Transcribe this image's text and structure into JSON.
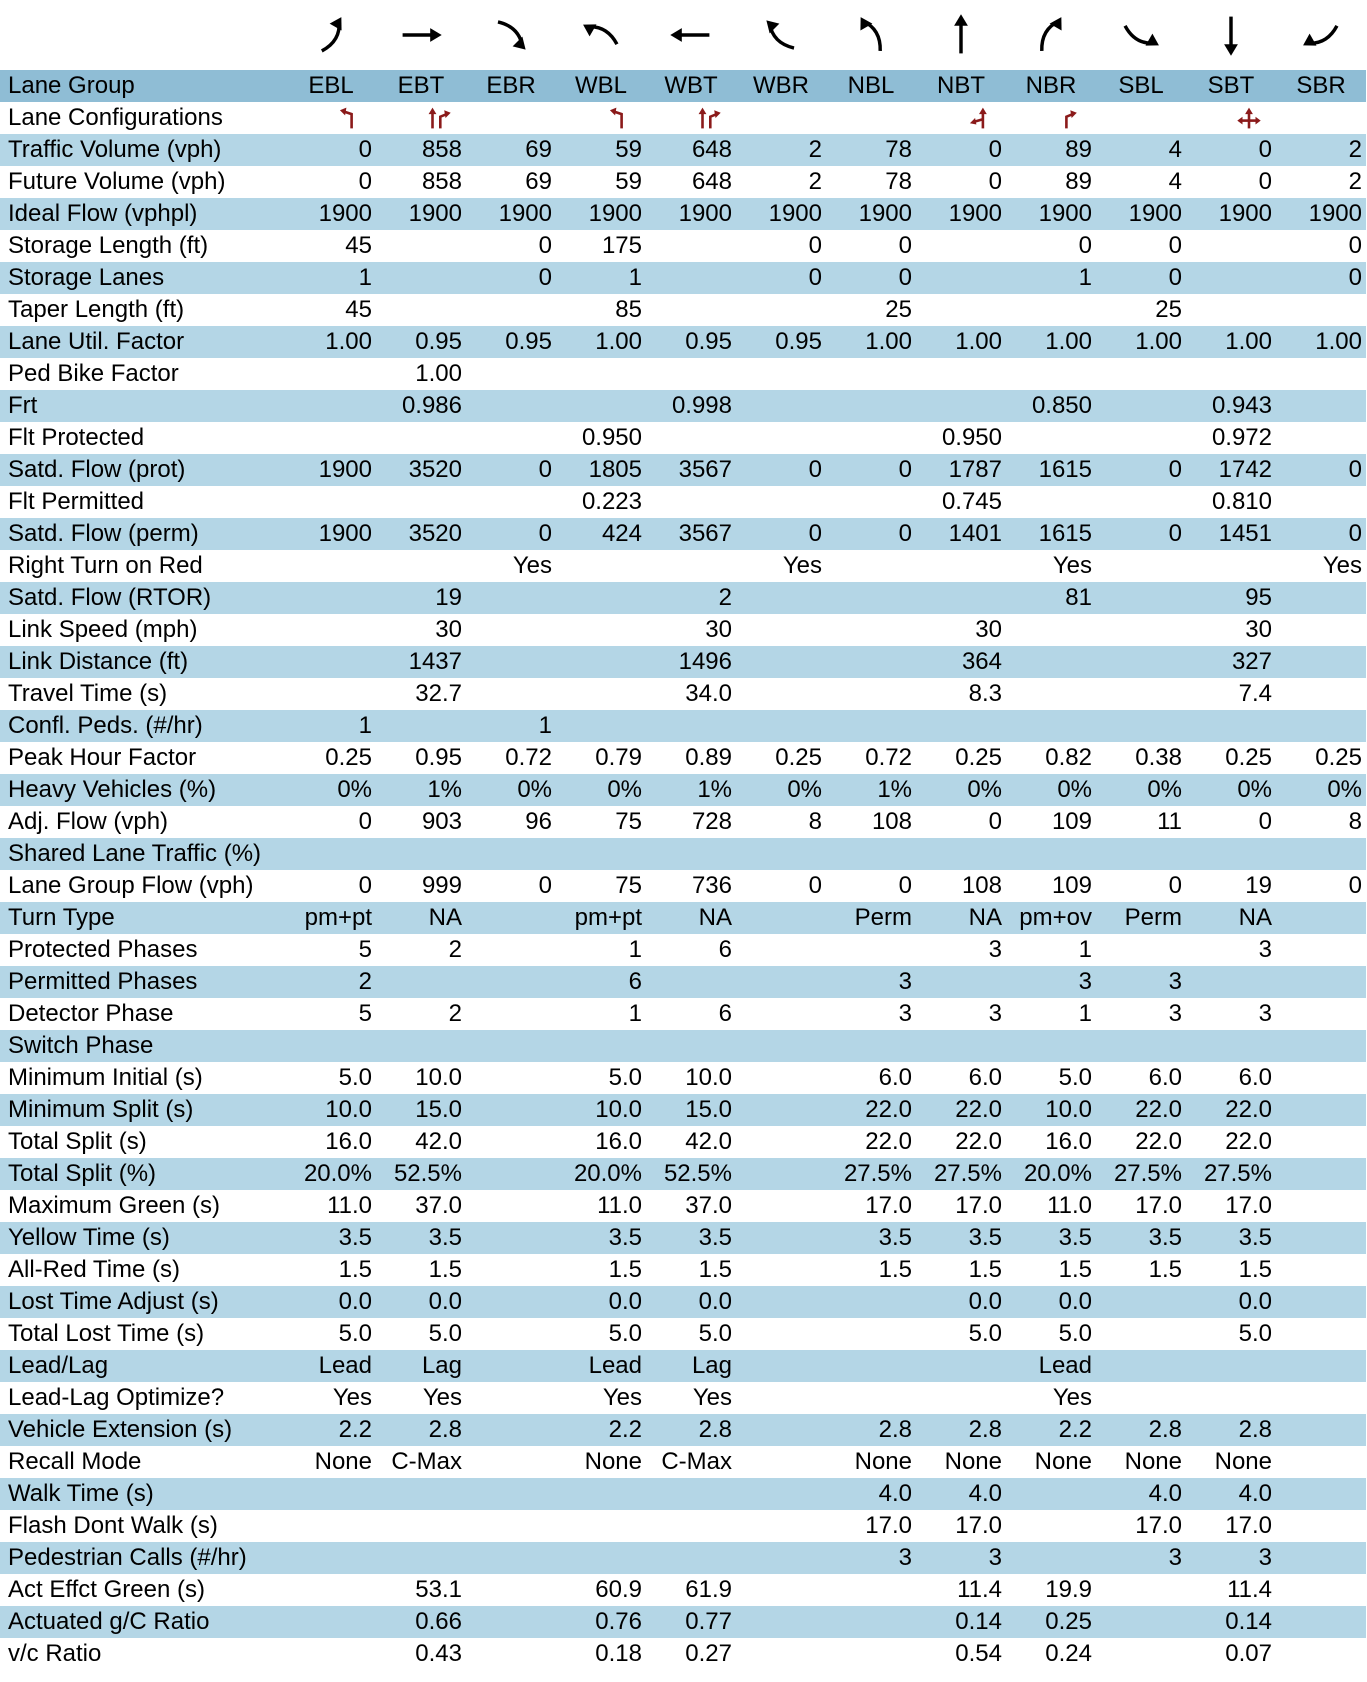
{
  "lane_group_label": "Lane Group",
  "columns": [
    "EBL",
    "EBT",
    "EBR",
    "WBL",
    "WBT",
    "WBR",
    "NBL",
    "NBT",
    "NBR",
    "SBL",
    "SBT",
    "SBR"
  ],
  "rows": [
    {
      "label": "Lane Configurations",
      "cells": [
        null,
        null,
        null,
        null,
        null,
        null,
        null,
        null,
        null,
        null,
        null,
        null
      ]
    },
    {
      "label": "Traffic Volume (vph)",
      "cells": [
        "0",
        "858",
        "69",
        "59",
        "648",
        "2",
        "78",
        "0",
        "89",
        "4",
        "0",
        "2"
      ]
    },
    {
      "label": "Future Volume (vph)",
      "cells": [
        "0",
        "858",
        "69",
        "59",
        "648",
        "2",
        "78",
        "0",
        "89",
        "4",
        "0",
        "2"
      ]
    },
    {
      "label": "Ideal Flow (vphpl)",
      "cells": [
        "1900",
        "1900",
        "1900",
        "1900",
        "1900",
        "1900",
        "1900",
        "1900",
        "1900",
        "1900",
        "1900",
        "1900"
      ]
    },
    {
      "label": "Storage Length (ft)",
      "cells": [
        "45",
        null,
        "0",
        "175",
        null,
        "0",
        "0",
        null,
        "0",
        "0",
        null,
        "0"
      ]
    },
    {
      "label": "Storage Lanes",
      "cells": [
        "1",
        null,
        "0",
        "1",
        null,
        "0",
        "0",
        null,
        "1",
        "0",
        null,
        "0"
      ]
    },
    {
      "label": "Taper Length (ft)",
      "cells": [
        "45",
        null,
        null,
        "85",
        null,
        null,
        "25",
        null,
        null,
        "25",
        null,
        null
      ]
    },
    {
      "label": "Lane Util. Factor",
      "cells": [
        "1.00",
        "0.95",
        "0.95",
        "1.00",
        "0.95",
        "0.95",
        "1.00",
        "1.00",
        "1.00",
        "1.00",
        "1.00",
        "1.00"
      ]
    },
    {
      "label": "Ped Bike Factor",
      "cells": [
        null,
        "1.00",
        null,
        null,
        null,
        null,
        null,
        null,
        null,
        null,
        null,
        null
      ]
    },
    {
      "label": "Frt",
      "cells": [
        null,
        "0.986",
        null,
        null,
        "0.998",
        null,
        null,
        null,
        "0.850",
        null,
        "0.943",
        null
      ]
    },
    {
      "label": "Flt Protected",
      "cells": [
        null,
        null,
        null,
        "0.950",
        null,
        null,
        null,
        "0.950",
        null,
        null,
        "0.972",
        null
      ]
    },
    {
      "label": "Satd. Flow (prot)",
      "cells": [
        "1900",
        "3520",
        "0",
        "1805",
        "3567",
        "0",
        "0",
        "1787",
        "1615",
        "0",
        "1742",
        "0"
      ]
    },
    {
      "label": "Flt Permitted",
      "cells": [
        null,
        null,
        null,
        "0.223",
        null,
        null,
        null,
        "0.745",
        null,
        null,
        "0.810",
        null
      ]
    },
    {
      "label": "Satd. Flow (perm)",
      "cells": [
        "1900",
        "3520",
        "0",
        "424",
        "3567",
        "0",
        "0",
        "1401",
        "1615",
        "0",
        "1451",
        "0"
      ]
    },
    {
      "label": "Right Turn on Red",
      "cells": [
        null,
        null,
        "Yes",
        null,
        null,
        "Yes",
        null,
        null,
        "Yes",
        null,
        null,
        "Yes"
      ]
    },
    {
      "label": "Satd. Flow (RTOR)",
      "cells": [
        null,
        "19",
        null,
        null,
        "2",
        null,
        null,
        null,
        "81",
        null,
        "95",
        null
      ]
    },
    {
      "label": "Link Speed (mph)",
      "cells": [
        null,
        "30",
        null,
        null,
        "30",
        null,
        null,
        "30",
        null,
        null,
        "30",
        null
      ]
    },
    {
      "label": "Link Distance (ft)",
      "cells": [
        null,
        "1437",
        null,
        null,
        "1496",
        null,
        null,
        "364",
        null,
        null,
        "327",
        null
      ]
    },
    {
      "label": "Travel Time (s)",
      "cells": [
        null,
        "32.7",
        null,
        null,
        "34.0",
        null,
        null,
        "8.3",
        null,
        null,
        "7.4",
        null
      ]
    },
    {
      "label": "Confl. Peds. (#/hr)",
      "cells": [
        "1",
        null,
        "1",
        null,
        null,
        null,
        null,
        null,
        null,
        null,
        null,
        null
      ]
    },
    {
      "label": "Peak Hour Factor",
      "cells": [
        "0.25",
        "0.95",
        "0.72",
        "0.79",
        "0.89",
        "0.25",
        "0.72",
        "0.25",
        "0.82",
        "0.38",
        "0.25",
        "0.25"
      ]
    },
    {
      "label": "Heavy Vehicles (%)",
      "cells": [
        "0%",
        "1%",
        "0%",
        "0%",
        "1%",
        "0%",
        "1%",
        "0%",
        "0%",
        "0%",
        "0%",
        "0%"
      ]
    },
    {
      "label": "Adj. Flow (vph)",
      "cells": [
        "0",
        "903",
        "96",
        "75",
        "728",
        "8",
        "108",
        "0",
        "109",
        "11",
        "0",
        "8"
      ]
    },
    {
      "label": "Shared Lane Traffic (%)",
      "cells": [
        null,
        null,
        null,
        null,
        null,
        null,
        null,
        null,
        null,
        null,
        null,
        null
      ]
    },
    {
      "label": "Lane Group Flow (vph)",
      "cells": [
        "0",
        "999",
        "0",
        "75",
        "736",
        "0",
        "0",
        "108",
        "109",
        "0",
        "19",
        "0"
      ]
    },
    {
      "label": "Turn Type",
      "cells": [
        "pm+pt",
        "NA",
        null,
        "pm+pt",
        "NA",
        null,
        "Perm",
        "NA",
        "pm+ov",
        "Perm",
        "NA",
        null
      ]
    },
    {
      "label": "Protected Phases",
      "cells": [
        "5",
        "2",
        null,
        "1",
        "6",
        null,
        null,
        "3",
        "1",
        null,
        "3",
        null
      ]
    },
    {
      "label": "Permitted Phases",
      "cells": [
        "2",
        null,
        null,
        "6",
        null,
        null,
        "3",
        null,
        "3",
        "3",
        null,
        null
      ]
    },
    {
      "label": "Detector Phase",
      "cells": [
        "5",
        "2",
        null,
        "1",
        "6",
        null,
        "3",
        "3",
        "1",
        "3",
        "3",
        null
      ]
    },
    {
      "label": "Switch Phase",
      "cells": [
        null,
        null,
        null,
        null,
        null,
        null,
        null,
        null,
        null,
        null,
        null,
        null
      ]
    },
    {
      "label": "Minimum Initial (s)",
      "cells": [
        "5.0",
        "10.0",
        null,
        "5.0",
        "10.0",
        null,
        "6.0",
        "6.0",
        "5.0",
        "6.0",
        "6.0",
        null
      ]
    },
    {
      "label": "Minimum Split (s)",
      "cells": [
        "10.0",
        "15.0",
        null,
        "10.0",
        "15.0",
        null,
        "22.0",
        "22.0",
        "10.0",
        "22.0",
        "22.0",
        null
      ]
    },
    {
      "label": "Total Split (s)",
      "cells": [
        "16.0",
        "42.0",
        null,
        "16.0",
        "42.0",
        null,
        "22.0",
        "22.0",
        "16.0",
        "22.0",
        "22.0",
        null
      ]
    },
    {
      "label": "Total Split (%)",
      "cells": [
        "20.0%",
        "52.5%",
        null,
        "20.0%",
        "52.5%",
        null,
        "27.5%",
        "27.5%",
        "20.0%",
        "27.5%",
        "27.5%",
        null
      ]
    },
    {
      "label": "Maximum Green (s)",
      "cells": [
        "11.0",
        "37.0",
        null,
        "11.0",
        "37.0",
        null,
        "17.0",
        "17.0",
        "11.0",
        "17.0",
        "17.0",
        null
      ]
    },
    {
      "label": "Yellow Time (s)",
      "cells": [
        "3.5",
        "3.5",
        null,
        "3.5",
        "3.5",
        null,
        "3.5",
        "3.5",
        "3.5",
        "3.5",
        "3.5",
        null
      ]
    },
    {
      "label": "All-Red Time (s)",
      "cells": [
        "1.5",
        "1.5",
        null,
        "1.5",
        "1.5",
        null,
        "1.5",
        "1.5",
        "1.5",
        "1.5",
        "1.5",
        null
      ]
    },
    {
      "label": "Lost Time Adjust (s)",
      "cells": [
        "0.0",
        "0.0",
        null,
        "0.0",
        "0.0",
        null,
        null,
        "0.0",
        "0.0",
        null,
        "0.0",
        null
      ]
    },
    {
      "label": "Total Lost Time (s)",
      "cells": [
        "5.0",
        "5.0",
        null,
        "5.0",
        "5.0",
        null,
        null,
        "5.0",
        "5.0",
        null,
        "5.0",
        null
      ]
    },
    {
      "label": "Lead/Lag",
      "cells": [
        "Lead",
        "Lag",
        null,
        "Lead",
        "Lag",
        null,
        null,
        null,
        "Lead",
        null,
        null,
        null
      ]
    },
    {
      "label": "Lead-Lag Optimize?",
      "cells": [
        "Yes",
        "Yes",
        null,
        "Yes",
        "Yes",
        null,
        null,
        null,
        "Yes",
        null,
        null,
        null
      ]
    },
    {
      "label": "Vehicle Extension (s)",
      "cells": [
        "2.2",
        "2.8",
        null,
        "2.2",
        "2.8",
        null,
        "2.8",
        "2.8",
        "2.2",
        "2.8",
        "2.8",
        null
      ]
    },
    {
      "label": "Recall Mode",
      "cells": [
        "None",
        "C-Max",
        null,
        "None",
        "C-Max",
        null,
        "None",
        "None",
        "None",
        "None",
        "None",
        null
      ]
    },
    {
      "label": "Walk Time (s)",
      "cells": [
        null,
        null,
        null,
        null,
        null,
        null,
        "4.0",
        "4.0",
        null,
        "4.0",
        "4.0",
        null
      ]
    },
    {
      "label": "Flash Dont Walk (s)",
      "cells": [
        null,
        null,
        null,
        null,
        null,
        null,
        "17.0",
        "17.0",
        null,
        "17.0",
        "17.0",
        null
      ]
    },
    {
      "label": "Pedestrian Calls (#/hr)",
      "cells": [
        null,
        null,
        null,
        null,
        null,
        null,
        "3",
        "3",
        null,
        "3",
        "3",
        null
      ]
    },
    {
      "label": "Act Effct Green (s)",
      "cells": [
        null,
        "53.1",
        null,
        "60.9",
        "61.9",
        null,
        null,
        "11.4",
        "19.9",
        null,
        "11.4",
        null
      ]
    },
    {
      "label": "Actuated g/C Ratio",
      "cells": [
        null,
        "0.66",
        null,
        "0.76",
        "0.77",
        null,
        null,
        "0.14",
        "0.25",
        null,
        "0.14",
        null
      ]
    },
    {
      "label": "v/c Ratio",
      "cells": [
        null,
        "0.43",
        null,
        "0.18",
        "0.27",
        null,
        null,
        "0.54",
        "0.24",
        null,
        "0.07",
        null
      ]
    }
  ]
}
